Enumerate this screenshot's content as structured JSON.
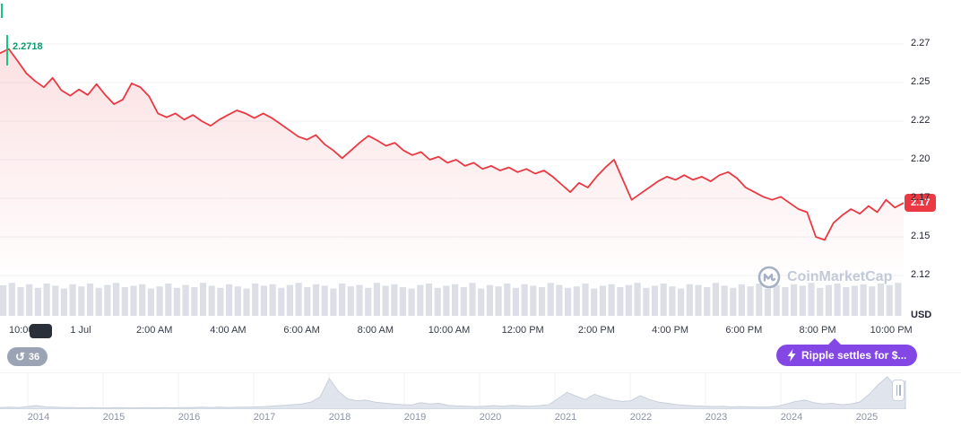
{
  "colors": {
    "red": "#ea3943",
    "green_line": "#16c784",
    "green_text": "#0c9a6c",
    "purple": "#8247e5",
    "grid": "#eff2f5",
    "axis_text": "#222531",
    "volume_bar": "#dcdfe6",
    "nav_fill": "#e0e4ec",
    "nav_stroke": "#c9d0dc",
    "watermark": "#c3cad7"
  },
  "chart": {
    "open_price": "2.2718"
  },
  "y_axis": {
    "current_price": "2.17",
    "unit": "USD"
  },
  "badges": {
    "history_count": "36",
    "news_label": "Ripple settles for $..."
  },
  "watermark": {
    "text": "CoinMarketCap"
  },
  "chart_data": {
    "type": "line",
    "subtype": "price-area-with-volume",
    "ylabel": "USD",
    "open_price": 2.2718,
    "last_price_label": "2.17",
    "ylim": [
      2.125,
      2.275
    ],
    "grid": true,
    "y_ticks": [
      {
        "label": "2.27",
        "value": 2.275
      },
      {
        "label": "2.25",
        "value": 2.25
      },
      {
        "label": "2.22",
        "value": 2.225
      },
      {
        "label": "2.20",
        "value": 2.2
      },
      {
        "label": "2.17",
        "value": 2.175
      },
      {
        "label": "2.15",
        "value": 2.15
      },
      {
        "label": "2.12",
        "value": 2.125
      }
    ],
    "x_ticks": [
      "10:00",
      "1 Jul",
      "2:00 AM",
      "4:00 AM",
      "6:00 AM",
      "8:00 AM",
      "10:00 AM",
      "12:00 PM",
      "2:00 PM",
      "4:00 PM",
      "6:00 PM",
      "8:00 PM",
      "10:00 PM"
    ],
    "prices": [
      2.269,
      2.2718,
      2.264,
      2.256,
      2.251,
      2.247,
      2.253,
      2.245,
      2.2415,
      2.2455,
      2.242,
      2.249,
      2.242,
      2.236,
      2.239,
      2.2495,
      2.247,
      2.241,
      2.23,
      2.2275,
      2.23,
      2.226,
      2.229,
      2.225,
      2.222,
      2.226,
      2.229,
      2.232,
      2.23,
      2.227,
      2.23,
      2.227,
      2.223,
      2.219,
      2.215,
      2.213,
      2.216,
      2.21,
      2.206,
      2.201,
      2.206,
      2.211,
      2.2155,
      2.2125,
      2.209,
      2.211,
      2.206,
      2.203,
      2.205,
      2.2,
      2.202,
      2.198,
      2.2,
      2.196,
      2.198,
      2.194,
      2.196,
      2.193,
      2.195,
      2.192,
      2.194,
      2.191,
      2.193,
      2.189,
      2.184,
      2.179,
      2.185,
      2.182,
      2.189,
      2.195,
      2.2,
      2.187,
      2.174,
      2.178,
      2.182,
      2.186,
      2.189,
      2.187,
      2.19,
      2.187,
      2.189,
      2.186,
      2.19,
      2.192,
      2.188,
      2.182,
      2.179,
      2.176,
      2.174,
      2.176,
      2.172,
      2.168,
      2.166,
      2.15,
      2.148,
      2.159,
      2.164,
      2.168,
      2.165,
      2.17,
      2.166,
      2.174,
      2.169,
      2.172
    ],
    "volume_rel": [
      0.85,
      0.92,
      0.8,
      0.88,
      0.78,
      0.9,
      0.84,
      0.76,
      0.88,
      0.82,
      0.9,
      0.78,
      0.86,
      0.92,
      0.8,
      0.84,
      0.88,
      0.76,
      0.82,
      0.9,
      0.78,
      0.86,
      0.8,
      0.92,
      0.84,
      0.78,
      0.88,
      0.82,
      0.76,
      0.9,
      0.84,
      0.88,
      0.78,
      0.86,
      0.92,
      0.8,
      0.88,
      0.84,
      0.76,
      0.9,
      0.82,
      0.86,
      0.78,
      0.92,
      0.84,
      0.88,
      0.8,
      0.76,
      0.86,
      0.9,
      0.78,
      0.84,
      0.88,
      0.8,
      0.92,
      0.76,
      0.86,
      0.82,
      0.9,
      0.78,
      0.88,
      0.84,
      0.8,
      0.92,
      0.86,
      0.78,
      0.82,
      0.9,
      0.76,
      0.84,
      0.88,
      0.8,
      0.86,
      0.92,
      0.78,
      0.84,
      0.9,
      0.82,
      0.76,
      0.88,
      0.86,
      0.8,
      0.92,
      0.84,
      0.78,
      0.88,
      0.82,
      0.9,
      0.76,
      0.86,
      0.8,
      0.88,
      0.84,
      0.92,
      0.78,
      0.86,
      0.9,
      0.8,
      0.84,
      0.88,
      0.82,
      0.9,
      0.86,
      0.92
    ],
    "navigator": {
      "years": [
        "2014",
        "2015",
        "2016",
        "2017",
        "2018",
        "2019",
        "2020",
        "2021",
        "2022",
        "2023",
        "2024",
        "2025"
      ],
      "volume_rel": [
        0.05,
        0.06,
        0.05,
        0.08,
        0.11,
        0.07,
        0.06,
        0.05,
        0.05,
        0.04,
        0.05,
        0.04,
        0.04,
        0.05,
        0.04,
        0.04,
        0.05,
        0.04,
        0.05,
        0.04,
        0.05,
        0.05,
        0.06,
        0.05,
        0.06,
        0.05,
        0.06,
        0.06,
        0.07,
        0.08,
        0.1,
        0.12,
        0.14,
        0.16,
        0.22,
        0.38,
        0.95,
        0.55,
        0.32,
        0.26,
        0.28,
        0.22,
        0.19,
        0.16,
        0.14,
        0.13,
        0.2,
        0.16,
        0.18,
        0.12,
        0.1,
        0.09,
        0.08,
        0.09,
        0.11,
        0.09,
        0.12,
        0.1,
        0.09,
        0.11,
        0.14,
        0.32,
        0.52,
        0.4,
        0.3,
        0.46,
        0.36,
        0.28,
        0.24,
        0.26,
        0.42,
        0.3,
        0.22,
        0.18,
        0.14,
        0.12,
        0.1,
        0.09,
        0.08,
        0.09,
        0.07,
        0.08,
        0.07,
        0.06,
        0.07,
        0.09,
        0.16,
        0.24,
        0.28,
        0.2,
        0.16,
        0.18,
        0.14,
        0.16,
        0.22,
        0.45,
        0.75,
        1.0,
        0.7,
        0.88
      ]
    }
  }
}
